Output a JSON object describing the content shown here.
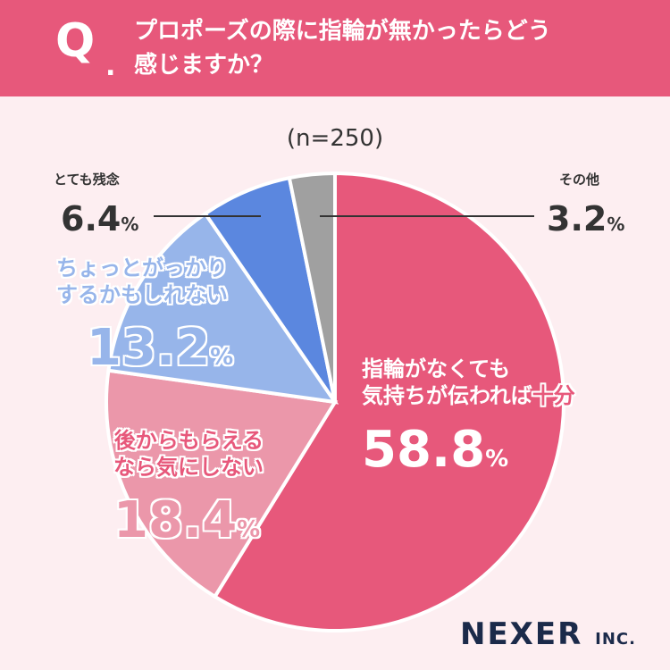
{
  "question": {
    "mark": "Q",
    "dot": ".",
    "line1": "プロポーズの際に指輪が無かったらどう",
    "line2": "感じますか？"
  },
  "sample": "(n=250)",
  "chart_data": {
    "type": "pie",
    "start": "12 o'clock, clockwise",
    "slices": [
      {
        "label": "指輪がなくても気持ちが伝われば十分",
        "value": 58.8,
        "color": "#e7587b"
      },
      {
        "label": "後からもらえるなら気にしない",
        "value": 18.4,
        "color": "#eb97aa"
      },
      {
        "label": "ちょっとがっかりするかもしれない",
        "value": 13.2,
        "color": "#97b5ea"
      },
      {
        "label": "とても残念",
        "value": 6.4,
        "color": "#5b87df"
      },
      {
        "label": "その他",
        "value": 3.2,
        "color": "#a0a0a0"
      }
    ]
  },
  "labels": {
    "s1": {
      "line1": "指輪がなくても",
      "line2a": "気持ちが伝われば",
      "line2b": "十分",
      "value": "58.8",
      "unit": "%"
    },
    "s2": {
      "line1": "後からもらえる",
      "line2": "なら気にしない",
      "value": "18.4",
      "unit": "%"
    },
    "s3": {
      "line1": "ちょっとがっかり",
      "line2": "するかもしれない",
      "value": "13.2",
      "unit": "%"
    },
    "s4": {
      "line1": "とても残念",
      "value": "6.4",
      "unit": "%"
    },
    "s5": {
      "line1": "その他",
      "value": "3.2",
      "unit": "%"
    }
  },
  "logo": {
    "main": "NEXER",
    "sub": "INC."
  }
}
